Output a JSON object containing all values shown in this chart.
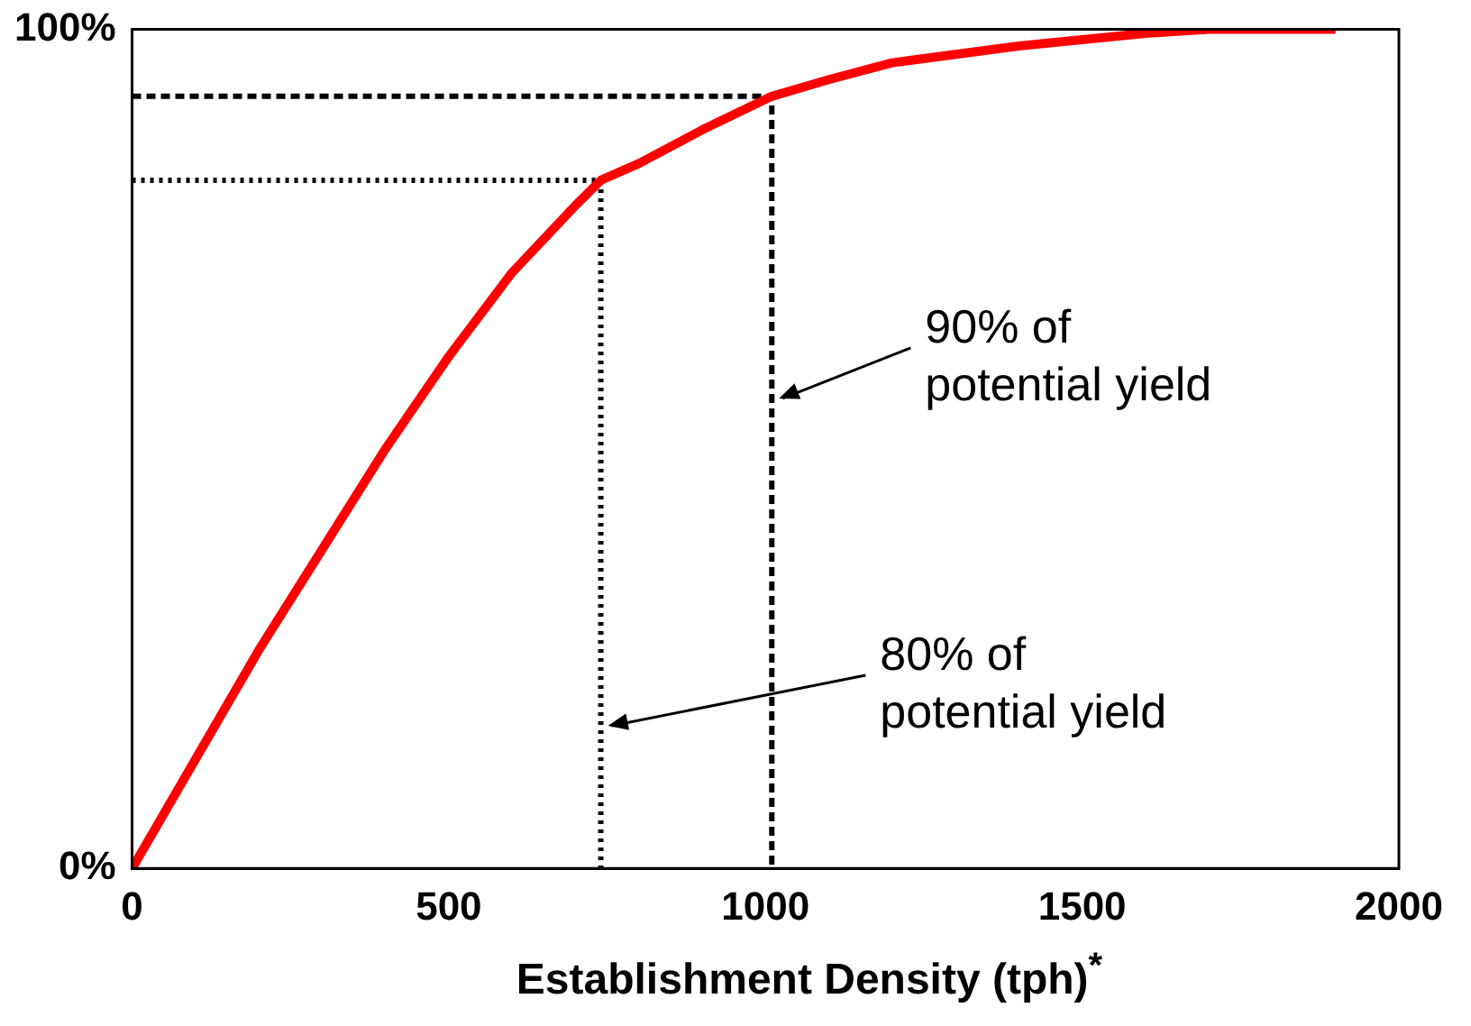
{
  "chart_data": {
    "type": "line",
    "xlabel": "Establishment Density (tph)$^{*}$",
    "xlim": [
      0,
      2000
    ],
    "xticks": [
      0,
      500,
      1000,
      1500,
      2000
    ],
    "ylim": [
      0,
      100
    ],
    "yticks": [
      {
        "value": 0,
        "label": "0%"
      },
      {
        "value": 100,
        "label": "100%"
      }
    ],
    "grid": false,
    "legend": false,
    "marker": "none",
    "series": [
      {
        "color": "#ff0000",
        "x": [
          0,
          100,
          200,
          300,
          400,
          500,
          600,
          700,
          740,
          800,
          900,
          1010,
          1100,
          1200,
          1400,
          1600,
          1700,
          1900
        ],
        "values": [
          0,
          13,
          26,
          38,
          50,
          61,
          71,
          79,
          82,
          84,
          88,
          92,
          94,
          96,
          98,
          99.5,
          100,
          100
        ]
      },
      {
        "color": "#000000",
        "line_style": "dotted",
        "x": [
          0,
          740,
          740
        ],
        "values": [
          82,
          82,
          0
        ]
      },
      {
        "color": "#000000",
        "line_style": "dashed",
        "x": [
          0,
          1010,
          1010
        ],
        "values": [
          92,
          92,
          0
        ]
      }
    ],
    "annotations": [
      {
        "text": "90% of\npotential yield",
        "x": 1010,
        "y": 56
      },
      {
        "text": "80% of\npotential yield",
        "x": 740,
        "y": 17
      }
    ]
  }
}
